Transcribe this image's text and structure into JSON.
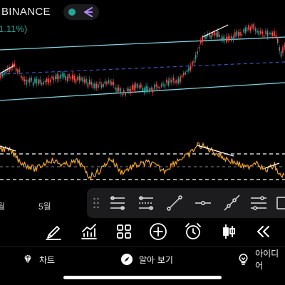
{
  "header": {
    "exchange": "BINANCE",
    "change_pct": "1.11%)",
    "status_dot_color": "#26a69a",
    "compare_icon": "triangle-arrow-icon",
    "compare_icon_color": "#b388ff"
  },
  "chart": {
    "price_channel_color": "#7fd3de",
    "midline_color": "#3f51b5",
    "up_color": "#26a69a",
    "down_color": "#ef5350",
    "rsi_line_color": "#f5a623",
    "rsi_level_color": "#ffffff"
  },
  "axis": {
    "month_left": "월",
    "month_may": "5월"
  },
  "drawing_tools": [
    {
      "icon": "horizontal-lines-icon"
    },
    {
      "icon": "fib-levels-icon"
    },
    {
      "icon": "trend-line-icon"
    },
    {
      "icon": "horizontal-ray-icon"
    },
    {
      "icon": "ray-line-icon"
    },
    {
      "icon": "parallel-channel-icon"
    },
    {
      "icon": "rectangle-icon"
    }
  ],
  "toolbar": [
    {
      "icon": "brush-icon"
    },
    {
      "icon": "indicators-icon"
    },
    {
      "icon": "grid-icon"
    },
    {
      "icon": "add-icon"
    },
    {
      "icon": "alarm-icon"
    },
    {
      "icon": "candles-icon"
    },
    {
      "icon": "rewind-icon"
    }
  ],
  "nav": {
    "chart": "차트",
    "explore": "알아 보기",
    "ideas": "아이디어"
  }
}
